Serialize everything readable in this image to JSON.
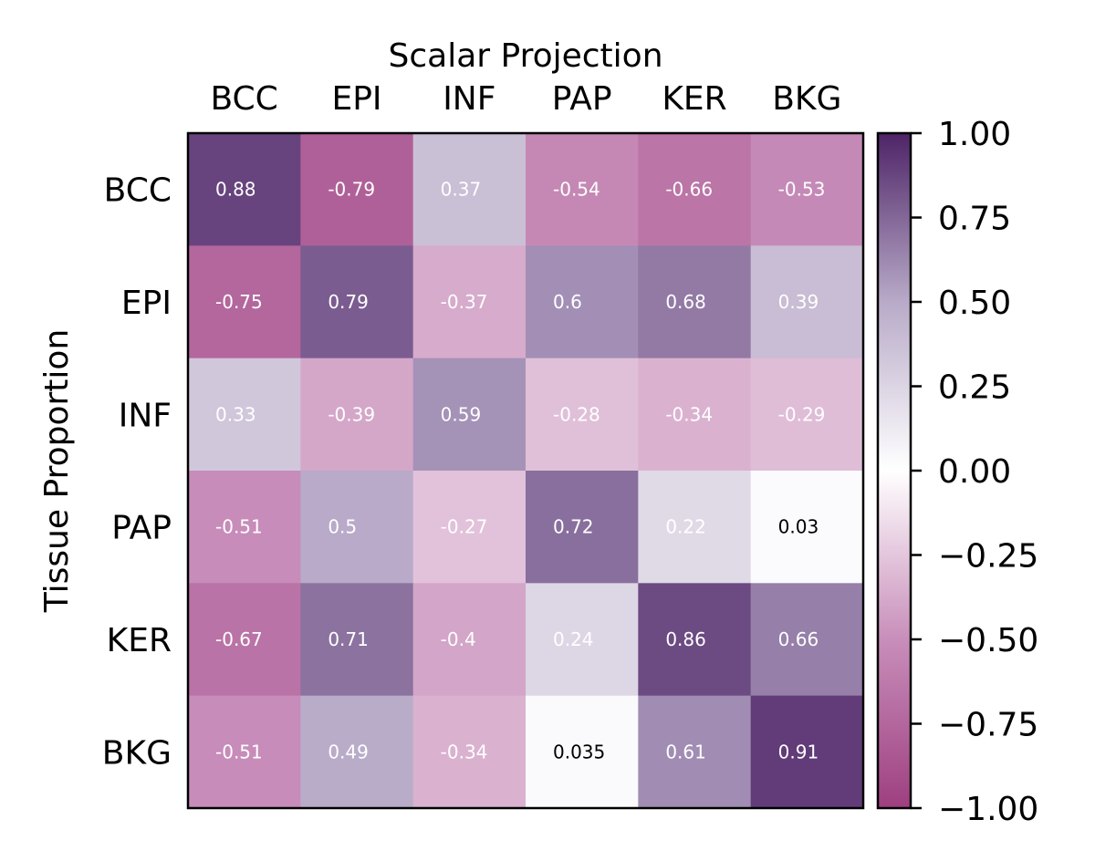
{
  "chart_data": {
    "type": "heatmap",
    "title": "",
    "xlabel": "Scalar Projection",
    "ylabel": "Tissue Proportion",
    "x_categories": [
      "BCC",
      "EPI",
      "INF",
      "PAP",
      "KER",
      "BKG"
    ],
    "y_categories": [
      "BCC",
      "EPI",
      "INF",
      "PAP",
      "KER",
      "BKG"
    ],
    "values": [
      [
        0.88,
        -0.79,
        0.37,
        -0.54,
        -0.66,
        -0.53
      ],
      [
        -0.75,
        0.79,
        -0.37,
        0.6,
        0.68,
        0.39
      ],
      [
        0.33,
        -0.39,
        0.59,
        -0.28,
        -0.34,
        -0.29
      ],
      [
        -0.51,
        0.5,
        -0.27,
        0.72,
        0.22,
        0.03
      ],
      [
        -0.67,
        0.71,
        -0.4,
        0.24,
        0.86,
        0.66
      ],
      [
        -0.51,
        0.49,
        -0.34,
        0.035,
        0.61,
        0.91
      ]
    ],
    "cell_labels": [
      [
        "0.88",
        "-0.79",
        "0.37",
        "-0.54",
        "-0.66",
        "-0.53"
      ],
      [
        "-0.75",
        "0.79",
        "-0.37",
        "0.6",
        "0.68",
        "0.39"
      ],
      [
        "0.33",
        "-0.39",
        "0.59",
        "-0.28",
        "-0.34",
        "-0.29"
      ],
      [
        "-0.51",
        "0.5",
        "-0.27",
        "0.72",
        "0.22",
        "0.03"
      ],
      [
        "-0.67",
        "0.71",
        "-0.4",
        "0.24",
        "0.86",
        "0.66"
      ],
      [
        "-0.51",
        "0.49",
        "-0.34",
        "0.035",
        "0.61",
        "0.91"
      ]
    ],
    "colorbar": {
      "range": [
        -1.0,
        1.0
      ],
      "ticks": [
        1.0,
        0.75,
        0.5,
        0.25,
        0.0,
        -0.25,
        -0.5,
        -0.75,
        -1.0
      ],
      "tick_labels": [
        "1.00",
        "0.75",
        "0.50",
        "0.25",
        "0.00",
        "−0.25",
        "−0.50",
        "−0.75",
        "−1.00"
      ],
      "colors": {
        "min": "#9e3f80",
        "mid": "#ffffff",
        "max": "#4e2467"
      }
    },
    "x_axis_position": "top",
    "grid": false
  }
}
